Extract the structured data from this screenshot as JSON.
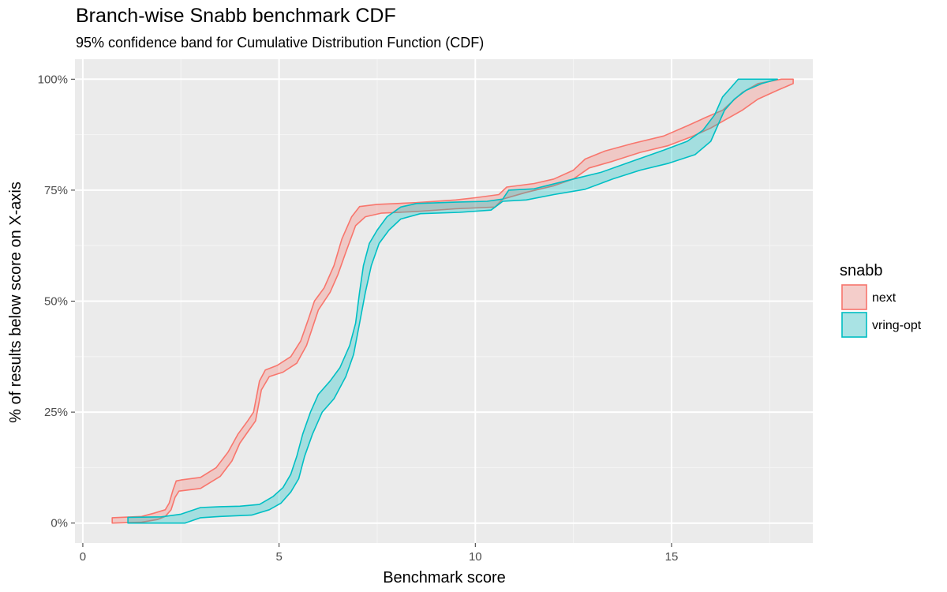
{
  "chart_data": {
    "type": "area",
    "title": "Branch-wise Snabb benchmark CDF",
    "subtitle": "95% confidence band for Cumulative Distribution Function (CDF)",
    "xlabel": "Benchmark score",
    "ylabel": "% of results below score on X-axis",
    "xlim": [
      -0.2,
      18.6
    ],
    "ylim": [
      -0.045,
      1.045
    ],
    "x_ticks": [
      0,
      5,
      10,
      15
    ],
    "x_tick_labels": [
      "0",
      "5",
      "10",
      "15"
    ],
    "y_ticks": [
      0,
      0.25,
      0.5,
      0.75,
      1.0
    ],
    "y_tick_labels": [
      "0%",
      "25%",
      "50%",
      "75%",
      "100%"
    ],
    "grid": true,
    "legend": {
      "title": "snabb",
      "position": "right"
    },
    "series": [
      {
        "name": "next",
        "color": "#F8766D",
        "fill": "#F8766D",
        "upper": [
          [
            0.75,
            0.012
          ],
          [
            1.5,
            0.015
          ],
          [
            1.8,
            0.022
          ],
          [
            2.1,
            0.03
          ],
          [
            2.2,
            0.045
          ],
          [
            2.3,
            0.075
          ],
          [
            2.38,
            0.095
          ],
          [
            2.5,
            0.097
          ],
          [
            3.0,
            0.103
          ],
          [
            3.4,
            0.125
          ],
          [
            3.7,
            0.16
          ],
          [
            3.95,
            0.2
          ],
          [
            4.2,
            0.23
          ],
          [
            4.35,
            0.25
          ],
          [
            4.5,
            0.32
          ],
          [
            4.65,
            0.345
          ],
          [
            4.95,
            0.355
          ],
          [
            5.3,
            0.375
          ],
          [
            5.55,
            0.41
          ],
          [
            5.75,
            0.46
          ],
          [
            5.9,
            0.5
          ],
          [
            6.15,
            0.53
          ],
          [
            6.4,
            0.58
          ],
          [
            6.6,
            0.64
          ],
          [
            6.85,
            0.69
          ],
          [
            7.05,
            0.713
          ],
          [
            7.5,
            0.718
          ],
          [
            8.5,
            0.722
          ],
          [
            9.5,
            0.728
          ],
          [
            10.0,
            0.733
          ],
          [
            10.6,
            0.74
          ],
          [
            10.8,
            0.757
          ],
          [
            11.5,
            0.765
          ],
          [
            12.0,
            0.775
          ],
          [
            12.5,
            0.795
          ],
          [
            12.8,
            0.82
          ],
          [
            13.3,
            0.838
          ],
          [
            14.0,
            0.855
          ],
          [
            14.8,
            0.872
          ],
          [
            15.4,
            0.895
          ],
          [
            15.9,
            0.915
          ],
          [
            16.3,
            0.93
          ],
          [
            16.8,
            0.97
          ],
          [
            17.2,
            0.99
          ],
          [
            17.8,
            1.0
          ],
          [
            18.1,
            1.0
          ]
        ],
        "lower": [
          [
            0.75,
            0.0
          ],
          [
            1.5,
            0.002
          ],
          [
            1.9,
            0.008
          ],
          [
            2.1,
            0.015
          ],
          [
            2.25,
            0.03
          ],
          [
            2.35,
            0.058
          ],
          [
            2.45,
            0.072
          ],
          [
            3.0,
            0.078
          ],
          [
            3.5,
            0.105
          ],
          [
            3.8,
            0.14
          ],
          [
            4.0,
            0.18
          ],
          [
            4.2,
            0.205
          ],
          [
            4.4,
            0.23
          ],
          [
            4.55,
            0.3
          ],
          [
            4.75,
            0.33
          ],
          [
            5.1,
            0.34
          ],
          [
            5.45,
            0.36
          ],
          [
            5.7,
            0.4
          ],
          [
            5.85,
            0.44
          ],
          [
            6.0,
            0.48
          ],
          [
            6.3,
            0.52
          ],
          [
            6.5,
            0.56
          ],
          [
            6.7,
            0.61
          ],
          [
            6.95,
            0.67
          ],
          [
            7.2,
            0.69
          ],
          [
            7.6,
            0.698
          ],
          [
            8.5,
            0.702
          ],
          [
            9.5,
            0.708
          ],
          [
            10.5,
            0.712
          ],
          [
            10.7,
            0.73
          ],
          [
            11.3,
            0.745
          ],
          [
            12.0,
            0.76
          ],
          [
            12.5,
            0.775
          ],
          [
            12.9,
            0.8
          ],
          [
            13.5,
            0.815
          ],
          [
            14.2,
            0.835
          ],
          [
            14.9,
            0.85
          ],
          [
            15.5,
            0.87
          ],
          [
            16.0,
            0.89
          ],
          [
            16.4,
            0.91
          ],
          [
            16.8,
            0.93
          ],
          [
            17.2,
            0.955
          ],
          [
            17.7,
            0.975
          ],
          [
            18.1,
            0.99
          ]
        ]
      },
      {
        "name": "vring-opt",
        "color": "#00BFC4",
        "fill": "#00BFC4",
        "upper": [
          [
            1.15,
            0.013
          ],
          [
            2.0,
            0.014
          ],
          [
            2.5,
            0.02
          ],
          [
            3.0,
            0.035
          ],
          [
            3.5,
            0.037
          ],
          [
            4.0,
            0.038
          ],
          [
            4.5,
            0.042
          ],
          [
            4.85,
            0.06
          ],
          [
            5.1,
            0.08
          ],
          [
            5.3,
            0.11
          ],
          [
            5.45,
            0.15
          ],
          [
            5.6,
            0.2
          ],
          [
            5.8,
            0.25
          ],
          [
            6.0,
            0.29
          ],
          [
            6.3,
            0.32
          ],
          [
            6.55,
            0.35
          ],
          [
            6.8,
            0.4
          ],
          [
            6.95,
            0.45
          ],
          [
            7.05,
            0.52
          ],
          [
            7.15,
            0.58
          ],
          [
            7.3,
            0.63
          ],
          [
            7.5,
            0.66
          ],
          [
            7.75,
            0.69
          ],
          [
            8.1,
            0.712
          ],
          [
            8.5,
            0.72
          ],
          [
            9.5,
            0.723
          ],
          [
            10.3,
            0.725
          ],
          [
            10.7,
            0.73
          ],
          [
            10.85,
            0.75
          ],
          [
            11.5,
            0.753
          ],
          [
            12.5,
            0.775
          ],
          [
            13.2,
            0.79
          ],
          [
            14.0,
            0.815
          ],
          [
            14.8,
            0.84
          ],
          [
            15.4,
            0.86
          ],
          [
            15.8,
            0.885
          ],
          [
            16.1,
            0.92
          ],
          [
            16.3,
            0.96
          ],
          [
            16.5,
            0.98
          ],
          [
            16.7,
            1.0
          ],
          [
            17.7,
            1.0
          ]
        ],
        "lower": [
          [
            1.15,
            0.0
          ],
          [
            2.6,
            0.0
          ],
          [
            3.0,
            0.012
          ],
          [
            3.5,
            0.015
          ],
          [
            4.3,
            0.018
          ],
          [
            4.75,
            0.03
          ],
          [
            5.05,
            0.045
          ],
          [
            5.3,
            0.07
          ],
          [
            5.5,
            0.1
          ],
          [
            5.65,
            0.15
          ],
          [
            5.85,
            0.2
          ],
          [
            6.1,
            0.25
          ],
          [
            6.4,
            0.28
          ],
          [
            6.7,
            0.33
          ],
          [
            6.9,
            0.38
          ],
          [
            7.05,
            0.45
          ],
          [
            7.2,
            0.52
          ],
          [
            7.35,
            0.58
          ],
          [
            7.55,
            0.63
          ],
          [
            7.8,
            0.66
          ],
          [
            8.1,
            0.685
          ],
          [
            8.6,
            0.697
          ],
          [
            9.6,
            0.7
          ],
          [
            10.4,
            0.705
          ],
          [
            10.7,
            0.725
          ],
          [
            11.3,
            0.728
          ],
          [
            12.0,
            0.74
          ],
          [
            12.8,
            0.752
          ],
          [
            13.5,
            0.775
          ],
          [
            14.2,
            0.795
          ],
          [
            14.9,
            0.81
          ],
          [
            15.6,
            0.83
          ],
          [
            16.0,
            0.86
          ],
          [
            16.2,
            0.9
          ],
          [
            16.35,
            0.93
          ],
          [
            16.6,
            0.955
          ],
          [
            16.9,
            0.975
          ],
          [
            17.3,
            0.99
          ],
          [
            17.7,
            1.0
          ]
        ]
      }
    ]
  }
}
